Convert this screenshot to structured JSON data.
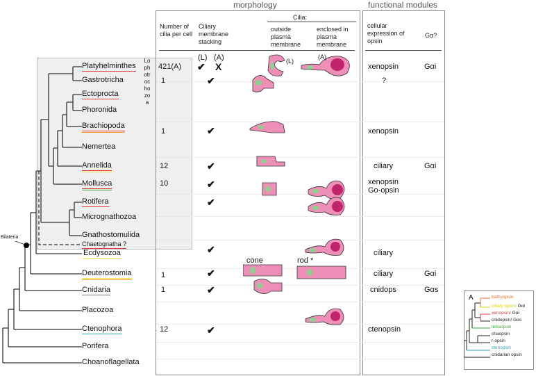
{
  "headers": {
    "morphology": "morphology",
    "functional": "functional modules"
  },
  "columns": {
    "num_cilia": "Number of cilia per cell",
    "stacking": "Ciliary membrane stacking",
    "cilia_group": "Cilia:",
    "outside": "outside plasma membrane",
    "enclosed": "enclosed in plasma membrane",
    "expression": "cellular expression of opsin",
    "galpha": "Gα?"
  },
  "clade_labels": {
    "lophotrochozoa": "Lophotrochozoa",
    "bilateria": "Bilateria"
  },
  "taxa": [
    {
      "name": "Platyhelminthes",
      "underline": [
        "#e03a3a"
      ]
    },
    {
      "name": "Gastrotricha",
      "underline": []
    },
    {
      "name": "Ectoprocta",
      "underline": [
        "#e03a3a"
      ]
    },
    {
      "name": "Phoronida",
      "underline": []
    },
    {
      "name": "Brachiopoda",
      "underline": [
        "#e03a3a",
        "#f0a030"
      ]
    },
    {
      "name": "Nemertea",
      "underline": []
    },
    {
      "name": "Annelida",
      "underline": [
        "#e03a3a",
        "#f2e040"
      ]
    },
    {
      "name": "Mollusca",
      "underline": [
        "#e03a3a",
        "#3aaa3a"
      ]
    },
    {
      "name": "Rotifera",
      "underline": [
        "#e03a3a"
      ]
    },
    {
      "name": "Micrognathozoa",
      "underline": []
    },
    {
      "name": "Gnathostomulida",
      "underline": []
    },
    {
      "name": "Chaetognatha ?",
      "underline": [
        "#e03a3a"
      ]
    },
    {
      "name": "Ecdysozoa",
      "underline": [
        "#f2e040"
      ]
    },
    {
      "name": "Deuterostomia",
      "underline": [
        "#f2e040",
        "#f0a030"
      ]
    },
    {
      "name": "Cnidaria",
      "underline": [
        "#777777"
      ]
    },
    {
      "name": "Placozoa",
      "underline": []
    },
    {
      "name": "Ctenophora",
      "underline": [
        "#2aaaa8"
      ]
    },
    {
      "name": "Porifera",
      "underline": []
    },
    {
      "name": "Choanoflagellata",
      "underline": []
    }
  ],
  "rows": {
    "platyhelminthes": {
      "num": "421(A)",
      "stack_L": "(L)",
      "stack_A": "(A)",
      "check": "✔",
      "cross": "X",
      "outside_tag": "(L)",
      "enclosed_tag": "(A)",
      "expression": "xenopsin",
      "galpha": "Gαi"
    },
    "gastrotricha": {
      "num": "1",
      "check": "✔",
      "expression": "?"
    },
    "brachiopoda": {
      "num": "1",
      "check": "✔",
      "expression": "xenopsin"
    },
    "annelida": {
      "num": "12",
      "check": "✔",
      "expression": "ciliary",
      "galpha": "Gαi"
    },
    "mollusca": {
      "num": "10",
      "check": "✔",
      "expression": "xenopsin",
      "expression2": "Go-opsin"
    },
    "rotifera": {
      "check": "✔"
    },
    "ecdysozoa": {
      "check": "✔",
      "expression": "ciliary"
    },
    "deuterostomia": {
      "num": "1",
      "check": "✔",
      "cone": "cone",
      "rod": "rod *",
      "expression": "ciliary",
      "galpha": "Gαi"
    },
    "cnidaria": {
      "num": "1",
      "check": "✔",
      "expression": "cnidops",
      "galpha": "Gαs"
    },
    "ctenophora": {
      "num": "12",
      "check": "✔",
      "expression": "ctenopsin"
    }
  },
  "inset": {
    "label": "A",
    "items": [
      {
        "name": "bathyopsin",
        "suffix": "",
        "color": "#e8743b"
      },
      {
        "name": "ciliary opsin/",
        "suffix": " Gαi",
        "color": "#e6d000"
      },
      {
        "name": "xenopsin/",
        "suffix": " Gαi",
        "color": "#e03a3a"
      },
      {
        "name": "cnidopsin/ Gαs",
        "suffix": "",
        "color": "#222222"
      },
      {
        "name": "tetraopsin",
        "suffix": "",
        "color": "#3aaa3a"
      },
      {
        "name": "chaopsin",
        "suffix": "",
        "color": "#222222"
      },
      {
        "name": "r-opsin",
        "suffix": "",
        "color": "#222222"
      },
      {
        "name": "ctenopsin",
        "suffix": "",
        "color": "#2aaaa8"
      },
      {
        "name": "cnidarian opsin",
        "suffix": "",
        "color": "#222222"
      }
    ]
  },
  "colors": {
    "cell_pink": "#ee8fb8",
    "nucleus": "#8fcf8f",
    "box_gray": "#efefef"
  }
}
